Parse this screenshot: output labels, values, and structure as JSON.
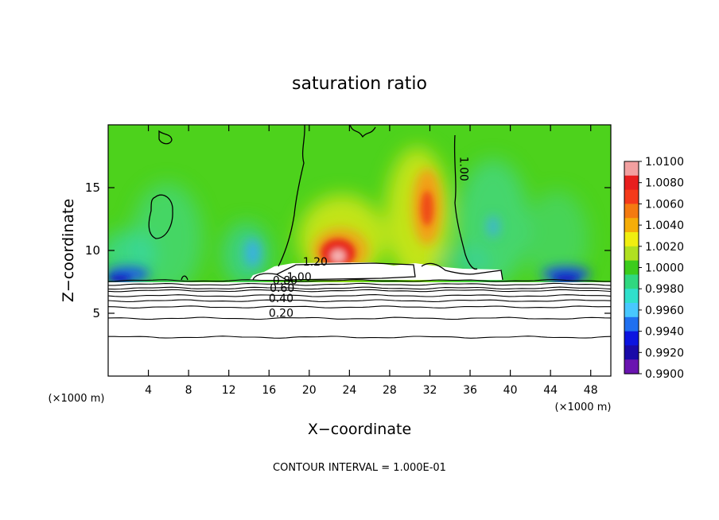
{
  "chart_data": {
    "type": "heatmap",
    "title": "saturation ratio",
    "xlabel": "X−coordinate",
    "ylabel": "Z−coordinate",
    "x_unit_left": "(×1000 m)",
    "x_unit_right": "(×1000 m)",
    "xlim": [
      0,
      50
    ],
    "ylim": [
      0,
      20
    ],
    "x_ticks": [
      4,
      8,
      12,
      16,
      20,
      24,
      28,
      32,
      36,
      40,
      44,
      48
    ],
    "y_ticks": [
      5,
      10,
      15
    ],
    "footer": "CONTOUR INTERVAL = 1.000E-01",
    "colorbar": {
      "labels": [
        "1.0100",
        "1.0080",
        "1.0060",
        "1.0040",
        "1.0020",
        "1.0000",
        "0.9980",
        "0.9960",
        "0.9940",
        "0.9920",
        "0.9900"
      ],
      "colors": [
        "#f2a0a0",
        "#e81e1e",
        "#f43a1a",
        "#f47a10",
        "#f5ad08",
        "#f0ee10",
        "#b0e020",
        "#3ccc1c",
        "#30d880",
        "#30e0cc",
        "#48c8ff",
        "#2070f0",
        "#0c14e0",
        "#1a0aa8",
        "#6a14b0"
      ]
    },
    "contour_labels": [
      {
        "text": "1.00",
        "x": 35.0,
        "z": 16.5,
        "angle": 90
      },
      {
        "text": "1.20",
        "x": 20.6,
        "z": 8.8,
        "angle": 0
      },
      {
        "text": "1.00",
        "x": 19.0,
        "z": 7.6,
        "angle": 0
      },
      {
        "text": "0.80",
        "x": 17.6,
        "z": 7.3,
        "angle": 0
      },
      {
        "text": "0.60",
        "x": 17.3,
        "z": 6.7,
        "angle": 0
      },
      {
        "text": "0.40",
        "x": 17.2,
        "z": 5.9,
        "angle": 0
      },
      {
        "text": "0.20",
        "x": 17.2,
        "z": 4.7,
        "angle": 0
      }
    ],
    "layered_contours_z": [
      3.1,
      4.6,
      5.5,
      6.0,
      6.4,
      6.8,
      7.0,
      7.3,
      7.6
    ]
  }
}
